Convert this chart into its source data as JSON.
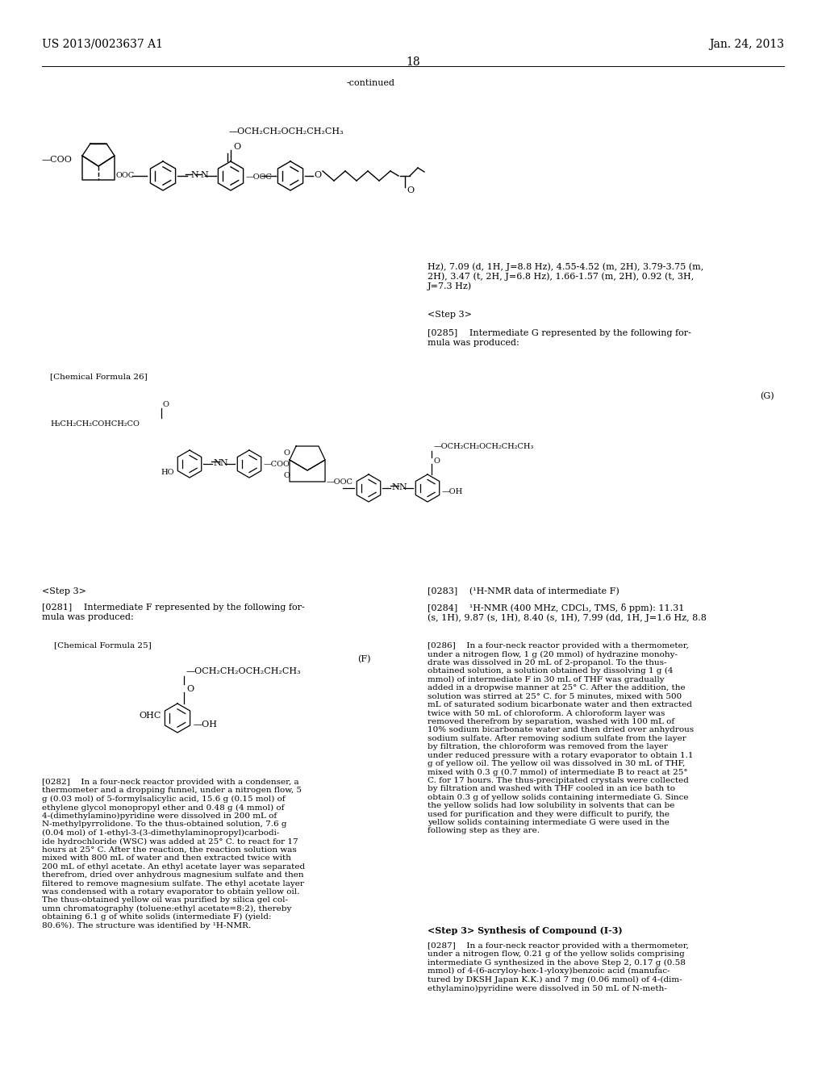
{
  "page_number": "18",
  "patent_number": "US 2013/0023637 A1",
  "patent_date": "Jan. 24, 2013",
  "background_color": "#ffffff",
  "text_color": "#000000",
  "font_size_header": 10,
  "font_size_body": 8.0,
  "font_size_small": 7.5,
  "font_size_chem": 7.0,
  "continued_label": "-continued",
  "chemical_formula_26_label": "[Chemical Formula 26]",
  "compound_label_G": "(G)",
  "compound_label_F": "(F)",
  "step3_label": "<Step 3>",
  "para0285": "[0285]  Intermediate G represented by the following for-\nmula was produced:",
  "para0281": "[0281]  Intermediate F represented by the following for-\nmula was produced:",
  "chemical_formula_25_label": "[Chemical Formula 25]",
  "nmr_text": "Hz), 7.09 (d, 1H, J=8.8 Hz), 4.55-4.52 (m, 2H), 3.79-3.75 (m,\n2H), 3.47 (t, 2H, J=6.8 Hz), 1.66-1.57 (m, 2H), 0.92 (t, 3H,\nJ=7.3 Hz)",
  "para0282_text": "[0282]  In a four-neck reactor provided with a condenser, a\nthermometer and a dropping funnel, under a nitrogen flow, 5\ng (0.03 mol) of 5-formylsalicylic acid, 15.6 g (0.15 mol) of\nethylene glycol monopropyl ether and 0.48 g (4 mmol) of\n4-(dimethylamino)pyridine were dissolved in 200 mL of\nN-methylpyrrolidone. To the thus-obtained solution, 7.6 g\n(0.04 mol) of 1-ethyl-3-(3-dimethylaminopropyl)carbodi-\nide hydrochloride (WSC) was added at 25° C. to react for 17\nhours at 25° C. After the reaction, the reaction solution was\nmixed with 800 mL of water and then extracted twice with\n200 mL of ethyl acetate. An ethyl acetate layer was separated\ntherefrom, dried over anhydrous magnesium sulfate and then\nfiltered to remove magnesium sulfate. The ethyl acetate layer\nwas condensed with a rotary evaporator to obtain yellow oil.\nThe thus-obtained yellow oil was purified by silica gel col-\numn chromatography (toluene:ethyl acetate=8:2), thereby\nobtaining 6.1 g of white solids (intermediate F) (yield:\n80.6%). The structure was identified by ¹H-NMR.",
  "para0283_text": "[0283]  (¹H-NMR data of intermediate F)",
  "para0284_text": "[0284]  ¹H-NMR (400 MHz, CDCl₃, TMS, δ ppm): 11.31\n(s, 1H), 9.87 (s, 1H), 8.40 (s, 1H), 7.99 (dd, 1H, J=1.6 Hz, 8.8",
  "para0286_text": "[0286]  In a four-neck reactor provided with a thermometer,\nunder a nitrogen flow, 1 g (20 mmol) of hydrazine monohy-\ndrate was dissolved in 20 mL of 2-propanol. To the thus-\nobtained solution, a solution obtained by dissolving 1 g (4\nmmol) of intermediate F in 30 mL of THF was gradually\nadded in a dropwise manner at 25° C. After the addition, the\nsolution was stirred at 25° C. for 5 minutes, mixed with 500\nmL of saturated sodium bicarbonate water and then extracted\ntwice with 50 mL of chloroform. A chloroform layer was\nremoved therefrom by separation, washed with 100 mL of\n10% sodium bicarbonate water and then dried over anhydrous\nsodium sulfate. After removing sodium sulfate from the layer\nby filtration, the chloroform was removed from the layer\nunder reduced pressure with a rotary evaporator to obtain 1.1\ng of yellow oil. The yellow oil was dissolved in 30 mL of THF,\nmixed with 0.3 g (0.7 mmol) of intermediate B to react at 25°\nC. for 17 hours. The thus-precipitated crystals were collected\nby filtration and washed with THF cooled in an ice bath to\nobtain 0.3 g of yellow solids containing intermediate G. Since\nthe yellow solids had low solubility in solvents that can be\nused for purification and they were difficult to purify, the\nyellow solids containing intermediate G were used in the\nfollowing step as they are.",
  "step3_synth_label": "<Step 3> Synthesis of Compound (I-3)",
  "para0287_text": "[0287]  In a four-neck reactor provided with a thermometer,\nunder a nitrogen flow, 0.21 g of the yellow solids comprising\nintermediate G synthesized in the above Step 2, 0.17 g (0.58\nmmol) of 4-(6-acryloy-hex-1-yloxy)benzoic acid (manufac-\ntured by DKSH Japan K.K.) and 7 mg (0.06 mmol) of 4-(dim-\nethylamino)pyridine were dissolved in 50 mL of N-meth-"
}
